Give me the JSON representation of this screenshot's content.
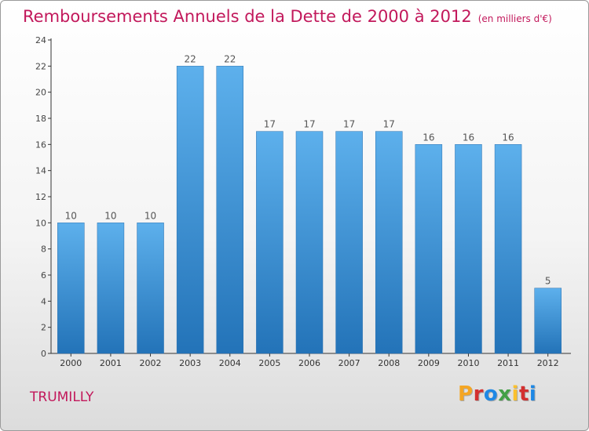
{
  "header": {
    "title": "Remboursements Annuels de la Dette de 2000 à 2012",
    "subtitle": "(en milliers d'€)"
  },
  "footer": {
    "commune": "TRUMILLY",
    "logo": "Proxiti",
    "logo_colors": [
      "#f5a623",
      "#d32f2f",
      "#1e88e5",
      "#43a047",
      "#fbc02d",
      "#d32f2f",
      "#1e88e5"
    ]
  },
  "chart_data": {
    "type": "bar",
    "categories": [
      "2000",
      "2001",
      "2002",
      "2003",
      "2004",
      "2005",
      "2006",
      "2007",
      "2008",
      "2009",
      "2010",
      "2011",
      "2012"
    ],
    "values": [
      10,
      10,
      10,
      22,
      22,
      17,
      17,
      17,
      17,
      16,
      16,
      16,
      5
    ],
    "title": "Remboursements Annuels de la Dette de 2000 à 2012",
    "subtitle": "(en milliers d'€)",
    "xlabel": "",
    "ylabel": "",
    "ylim": [
      0,
      24
    ],
    "yticks": [
      0,
      2,
      4,
      6,
      8,
      10,
      12,
      14,
      16,
      18,
      20,
      22,
      24
    ],
    "grid": false,
    "bar_color": "#3a8fd6",
    "data_labels": true
  }
}
